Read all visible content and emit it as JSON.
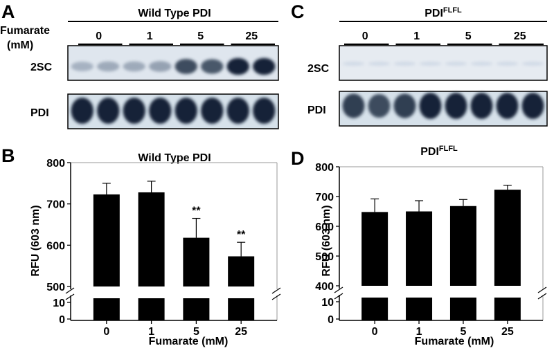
{
  "panels": {
    "a": {
      "letter": "A",
      "header": "Wild Type PDI",
      "row_label_1": "Fumarate",
      "row_label_2": "(mM)",
      "lane_groups": [
        "0",
        "1",
        "5",
        "25"
      ],
      "blot_labels": [
        "2SC",
        "PDI"
      ]
    },
    "b": {
      "letter": "B"
    },
    "c": {
      "letter": "C",
      "header_base": "PDI",
      "header_sup": "FLFL",
      "lane_groups": [
        "0",
        "1",
        "5",
        "25"
      ],
      "blot_labels": [
        "2SC",
        "PDI"
      ]
    },
    "d": {
      "letter": "D"
    }
  },
  "blots": {
    "a_2sc_intensity": [
      0.35,
      0.4,
      0.4,
      0.45,
      0.85,
      0.8,
      1.0,
      1.0
    ],
    "c_2sc_intensity": [
      0.05,
      0.05,
      0.05,
      0.05,
      0.05,
      0.05,
      0.05,
      0.05
    ]
  },
  "chart_data": [
    {
      "type": "bar",
      "title": "Wild Type PDI",
      "xlabel": "Fumarate (mM)",
      "ylabel": "RFU (603 nm)",
      "categories": [
        "0",
        "1",
        "5",
        "25"
      ],
      "values": [
        723,
        728,
        618,
        573
      ],
      "error": [
        27,
        27,
        47,
        34
      ],
      "annotations": [
        "",
        "",
        "**",
        "**"
      ],
      "axis_break": true,
      "lower_ticks": [
        "10",
        "0"
      ],
      "upper_ticks": [
        500,
        600,
        700,
        800
      ],
      "ylim": [
        500,
        800
      ]
    },
    {
      "type": "bar",
      "title_base": "PDI",
      "title_sup": "FLFL",
      "xlabel": "Fumarate (mM)",
      "ylabel": "RFU (603 nm)",
      "categories": [
        "0",
        "1",
        "5",
        "25"
      ],
      "values": [
        648,
        650,
        668,
        723
      ],
      "error": [
        44,
        36,
        22,
        15
      ],
      "annotations": [
        "",
        "",
        "",
        ""
      ],
      "axis_break": true,
      "lower_ticks": [
        "10",
        "0"
      ],
      "upper_ticks": [
        400,
        500,
        600,
        700,
        800
      ],
      "ylim": [
        400,
        800
      ]
    }
  ]
}
